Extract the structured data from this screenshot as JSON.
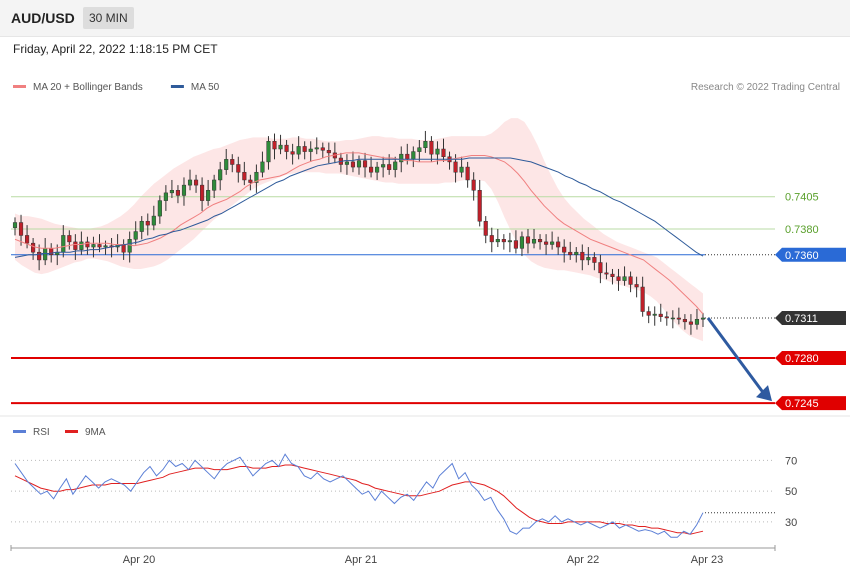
{
  "header": {
    "symbol": "AUD/USD",
    "timeframe": "30 MIN"
  },
  "datetime": "Friday, April 22, 2022 1:18:15 PM CET",
  "legend": {
    "items": [
      {
        "label": "MA 20 + Bollinger Bands",
        "color": "#f08080"
      },
      {
        "label": "MA 50",
        "color": "#2f5b9a"
      }
    ],
    "credit": "Research © 2022 Trading Central"
  },
  "rsi_legend": {
    "items": [
      {
        "label": "RSI",
        "color": "#5b7fd6"
      },
      {
        "label": "9MA",
        "color": "#e02020"
      }
    ]
  },
  "chart_data": {
    "type": "candlestick",
    "instrument": "AUD/USD",
    "interval": "30 MIN",
    "x_ticks": [
      "Apr 20",
      "Apr 21",
      "Apr 22",
      "Apr 23"
    ],
    "price_range": [
      0.7235,
      0.748
    ],
    "levels": [
      {
        "value": 0.7405,
        "label": "0.7405",
        "kind": "resistance",
        "color": "#5aa02c"
      },
      {
        "value": 0.738,
        "label": "0.7380",
        "kind": "resistance",
        "color": "#5aa02c"
      },
      {
        "value": 0.736,
        "label": "0.7360",
        "kind": "pivot",
        "color": "#2a6ad6"
      },
      {
        "value": 0.7311,
        "label": "0.7311",
        "kind": "last",
        "color": "#333333"
      },
      {
        "value": 0.728,
        "label": "0.7280",
        "kind": "support",
        "color": "#e00000"
      },
      {
        "value": 0.7245,
        "label": "0.7245",
        "kind": "support",
        "color": "#e00000"
      }
    ],
    "close": [
      0.7385,
      0.7375,
      0.7369,
      0.7362,
      0.7356,
      0.7365,
      0.736,
      0.7362,
      0.7375,
      0.737,
      0.7364,
      0.737,
      0.7366,
      0.7368,
      0.7366,
      0.7367,
      0.7366,
      0.7368,
      0.7362,
      0.7372,
      0.7378,
      0.7386,
      0.7383,
      0.739,
      0.7402,
      0.7408,
      0.741,
      0.7406,
      0.7414,
      0.7418,
      0.7414,
      0.7402,
      0.741,
      0.7418,
      0.7426,
      0.7434,
      0.743,
      0.7424,
      0.7418,
      0.7416,
      0.7424,
      0.7432,
      0.7448,
      0.7442,
      0.7445,
      0.744,
      0.7438,
      0.7444,
      0.744,
      0.7442,
      0.7443,
      0.7441,
      0.7439,
      0.7435,
      0.743,
      0.7432,
      0.7428,
      0.7433,
      0.7428,
      0.7424,
      0.7428,
      0.743,
      0.7426,
      0.7432,
      0.7438,
      0.7434,
      0.744,
      0.7443,
      0.7448,
      0.7438,
      0.7442,
      0.7436,
      0.7432,
      0.7424,
      0.7428,
      0.7418,
      0.741,
      0.7386,
      0.7375,
      0.737,
      0.7372,
      0.737,
      0.7371,
      0.7365,
      0.7374,
      0.7369,
      0.7372,
      0.737,
      0.7368,
      0.737,
      0.7366,
      0.7362,
      0.736,
      0.7362,
      0.7356,
      0.7358,
      0.7354,
      0.7346,
      0.7345,
      0.7343,
      0.734,
      0.7343,
      0.7337,
      0.7335,
      0.7316,
      0.7313,
      0.7314,
      0.7312,
      0.7311,
      0.7311,
      0.731,
      0.7308,
      0.7306,
      0.731,
      0.7311
    ],
    "ma20": [
      0.7372,
      0.737,
      0.7368,
      0.7366,
      0.7365,
      0.7365,
      0.7365,
      0.7366,
      0.7367,
      0.7368,
      0.7368,
      0.7369,
      0.7369,
      0.7369,
      0.7369,
      0.7368,
      0.7368,
      0.7368,
      0.7367,
      0.7368,
      0.7369,
      0.7371,
      0.7373,
      0.7376,
      0.7379,
      0.7383,
      0.7386,
      0.7389,
      0.7392,
      0.7396,
      0.7399,
      0.7401,
      0.7403,
      0.7406,
      0.7409,
      0.7413,
      0.7416,
      0.7418,
      0.7419,
      0.742,
      0.7421,
      0.7423,
      0.7426,
      0.7429,
      0.7431,
      0.7433,
      0.7434,
      0.7436,
      0.7437,
      0.7438,
      0.7439,
      0.7439,
      0.7439,
      0.7438,
      0.7437,
      0.7436,
      0.7435,
      0.7435,
      0.7434,
      0.7433,
      0.7433,
      0.7432,
      0.7432,
      0.7432,
      0.7433,
      0.7433,
      0.7434,
      0.7435,
      0.7436,
      0.7437,
      0.7437,
      0.7437,
      0.7436,
      0.7434,
      0.7432,
      0.7428,
      0.7423,
      0.7417,
      0.741,
      0.7404,
      0.7398,
      0.7393,
      0.7388,
      0.7384,
      0.7381,
      0.7378,
      0.7375,
      0.7372,
      0.737,
      0.7368,
      0.7366,
      0.7364,
      0.7362,
      0.736,
      0.7358,
      0.7356,
      0.7352,
      0.7348,
      0.7344,
      0.734,
      0.7335,
      0.733,
      0.7325,
      0.732,
      0.7314
    ],
    "bb_upper": [
      0.7392,
      0.739,
      0.739,
      0.7389,
      0.7388,
      0.7386,
      0.7384,
      0.7383,
      0.7382,
      0.7381,
      0.738,
      0.738,
      0.7381,
      0.7382,
      0.7384,
      0.7387,
      0.739,
      0.7394,
      0.7399,
      0.7405,
      0.741,
      0.7415,
      0.7419,
      0.7423,
      0.7427,
      0.743,
      0.7433,
      0.7436,
      0.7438,
      0.744,
      0.7442,
      0.7443,
      0.7445,
      0.7447,
      0.7449,
      0.745,
      0.7451,
      0.7451,
      0.7451,
      0.745,
      0.745,
      0.745,
      0.7451,
      0.7451,
      0.745,
      0.745,
      0.7449,
      0.7448,
      0.7448,
      0.7448,
      0.7449,
      0.7449,
      0.745,
      0.7451,
      0.7452,
      0.7452,
      0.7451,
      0.7451,
      0.745,
      0.745,
      0.745,
      0.7449,
      0.7449,
      0.7449,
      0.745,
      0.7451,
      0.7452,
      0.7452,
      0.7452,
      0.7452,
      0.7452,
      0.7452,
      0.7454,
      0.7458,
      0.7463,
      0.7466,
      0.7466,
      0.7463,
      0.7455,
      0.7445,
      0.7433,
      0.7422,
      0.7412,
      0.7404,
      0.7398,
      0.7393,
      0.7388,
      0.7384,
      0.738,
      0.7376,
      0.7373,
      0.737,
      0.7368,
      0.7366,
      0.7364,
      0.7362,
      0.736,
      0.7358,
      0.7354,
      0.735,
      0.7346,
      0.7342,
      0.7338,
      0.7334,
      0.733
    ],
    "bb_lower": [
      0.7356,
      0.7352,
      0.7349,
      0.7346,
      0.7345,
      0.7346,
      0.7348,
      0.735,
      0.7352,
      0.7354,
      0.7355,
      0.7357,
      0.7357,
      0.7356,
      0.7355,
      0.7353,
      0.7351,
      0.735,
      0.7349,
      0.7349,
      0.735,
      0.7351,
      0.7353,
      0.7356,
      0.736,
      0.7364,
      0.7368,
      0.7372,
      0.7377,
      0.7382,
      0.7387,
      0.7391,
      0.7395,
      0.7399,
      0.7403,
      0.7407,
      0.7411,
      0.7414,
      0.7416,
      0.7418,
      0.742,
      0.7422,
      0.7423,
      0.7424,
      0.7424,
      0.7424,
      0.7424,
      0.7423,
      0.7423,
      0.7423,
      0.7422,
      0.7421,
      0.742,
      0.7419,
      0.7418,
      0.7417,
      0.7416,
      0.7416,
      0.7415,
      0.7415,
      0.7415,
      0.7415,
      0.7415,
      0.7415,
      0.7415,
      0.7416,
      0.7416,
      0.7417,
      0.7418,
      0.7418,
      0.7418,
      0.7417,
      0.7411,
      0.7401,
      0.7389,
      0.7378,
      0.7368,
      0.736,
      0.7355,
      0.7352,
      0.735,
      0.7349,
      0.7348,
      0.7348,
      0.7347,
      0.7346,
      0.7345,
      0.7344,
      0.7342,
      0.7341,
      0.7339,
      0.7337,
      0.7336,
      0.7334,
      0.7333,
      0.7331,
      0.7328,
      0.7324,
      0.7318,
      0.7312,
      0.7306,
      0.7301,
      0.7297,
      0.7295,
      0.7293
    ],
    "ma50": [
      0.7358,
      0.7359,
      0.736,
      0.736,
      0.7361,
      0.7361,
      0.7362,
      0.7362,
      0.7362,
      0.7363,
      0.7363,
      0.7364,
      0.7364,
      0.7365,
      0.7366,
      0.7367,
      0.7368,
      0.7369,
      0.737,
      0.7372,
      0.7373,
      0.7375,
      0.7376,
      0.7378,
      0.7379,
      0.7381,
      0.7383,
      0.7385,
      0.7387,
      0.739,
      0.7392,
      0.7395,
      0.7398,
      0.7401,
      0.7404,
      0.7407,
      0.741,
      0.7413,
      0.7416,
      0.7418,
      0.7421,
      0.7423,
      0.7425,
      0.7427,
      0.7429,
      0.743,
      0.7431,
      0.7432,
      0.7433,
      0.7433,
      0.7434,
      0.7434,
      0.7434,
      0.7434,
      0.7434,
      0.7434,
      0.7434,
      0.7434,
      0.7434,
      0.7434,
      0.7434,
      0.7434,
      0.7434,
      0.7434,
      0.7434,
      0.7434,
      0.7435,
      0.7435,
      0.7435,
      0.7435,
      0.7435,
      0.7435,
      0.7435,
      0.7434,
      0.7433,
      0.7432,
      0.743,
      0.7428,
      0.7426,
      0.7424,
      0.7421,
      0.7419,
      0.7416,
      0.7414,
      0.7411,
      0.7409,
      0.7406,
      0.7403,
      0.7401,
      0.7398,
      0.7395,
      0.7392,
      0.7389,
      0.7386,
      0.7382,
      0.7378,
      0.7374,
      0.737,
      0.7366,
      0.7362,
      0.7359
    ],
    "rsi": {
      "ticks": [
        30,
        50,
        70
      ],
      "range": [
        15,
        80
      ],
      "rsi": [
        68,
        62,
        56,
        52,
        48,
        50,
        45,
        52,
        58,
        48,
        54,
        60,
        56,
        52,
        56,
        58,
        56,
        54,
        50,
        56,
        62,
        66,
        60,
        64,
        70,
        66,
        68,
        64,
        70,
        66,
        62,
        58,
        64,
        68,
        70,
        72,
        66,
        60,
        64,
        68,
        70,
        66,
        74,
        68,
        66,
        60,
        58,
        62,
        58,
        56,
        58,
        60,
        56,
        52,
        48,
        50,
        44,
        50,
        46,
        42,
        46,
        48,
        44,
        50,
        56,
        52,
        60,
        64,
        68,
        58,
        62,
        54,
        50,
        44,
        46,
        38,
        32,
        24,
        22,
        26,
        26,
        30,
        32,
        30,
        34,
        30,
        32,
        30,
        28,
        30,
        28,
        26,
        28,
        30,
        26,
        28,
        26,
        24,
        25,
        24,
        22,
        24,
        20,
        20,
        24,
        22,
        28,
        36
      ],
      "ma9": [
        60,
        58,
        56,
        54,
        52,
        51,
        50,
        50,
        51,
        51,
        52,
        53,
        54,
        54,
        54,
        55,
        55,
        55,
        55,
        55,
        56,
        57,
        58,
        59,
        61,
        62,
        63,
        64,
        65,
        65,
        65,
        64,
        64,
        64,
        65,
        66,
        66,
        65,
        65,
        65,
        66,
        66,
        67,
        67,
        66,
        65,
        64,
        63,
        62,
        61,
        60,
        59,
        58,
        57,
        55,
        54,
        52,
        51,
        50,
        49,
        48,
        47,
        47,
        47,
        48,
        49,
        50,
        52,
        54,
        55,
        56,
        56,
        55,
        54,
        52,
        50,
        47,
        43,
        39,
        36,
        33,
        31,
        30,
        29,
        29,
        29,
        30,
        30,
        30,
        30,
        30,
        30,
        29,
        29,
        29,
        28,
        28,
        27,
        27,
        26,
        26,
        25,
        24,
        23,
        23,
        22,
        23,
        24
      ]
    }
  }
}
